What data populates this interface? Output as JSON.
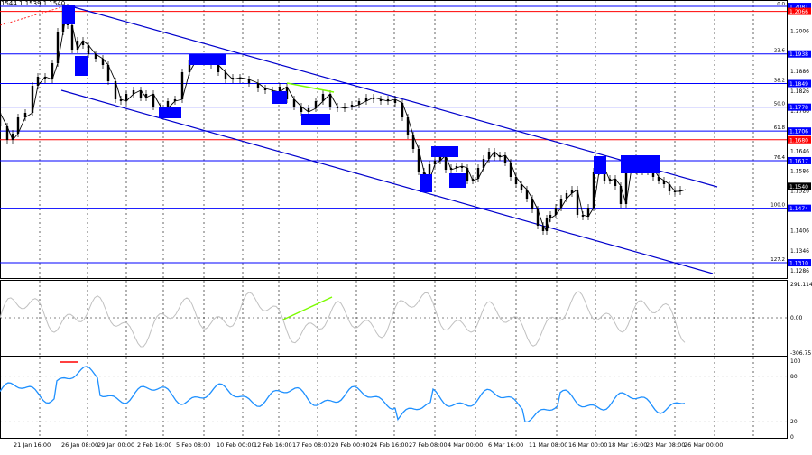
{
  "header": {
    "quote_line": "1544 1.1539 1.1540",
    "fib_pct_label": "0.0"
  },
  "price_axis": {
    "ticks": [
      "1.2006",
      "1.1886",
      "1.1826",
      "1.1766",
      "1.1646",
      "1.1586",
      "1.1526",
      "1.1406",
      "1.1346",
      "1.1286"
    ],
    "tick_values": [
      1.2006,
      1.1886,
      1.1826,
      1.1766,
      1.1646,
      1.1586,
      1.1526,
      1.1406,
      1.1346,
      1.1286
    ],
    "level_boxes": [
      {
        "value": 1.2081,
        "label": "1.2081",
        "color": "#0000ff"
      },
      {
        "value": 1.2066,
        "label": "1.2066",
        "color": "#ff0000"
      },
      {
        "value": 1.1938,
        "label": "1.1938",
        "color": "#0000ff"
      },
      {
        "value": 1.1849,
        "label": "1.1849",
        "color": "#0000ff"
      },
      {
        "value": 1.1778,
        "label": "1.1778",
        "color": "#0000ff"
      },
      {
        "value": 1.1706,
        "label": "1.1706",
        "color": "#0000ff"
      },
      {
        "value": 1.168,
        "label": "1.1680",
        "color": "#ff0000"
      },
      {
        "value": 1.1617,
        "label": "1.1617",
        "color": "#0000ff"
      },
      {
        "value": 1.154,
        "label": "1.1540",
        "color": "#000000"
      },
      {
        "value": 1.1474,
        "label": "1.1474",
        "color": "#0000ff"
      },
      {
        "value": 1.131,
        "label": "1.1310",
        "color": "#0000ff"
      }
    ]
  },
  "fib_levels": [
    {
      "pct": "23.6",
      "value": 1.1938
    },
    {
      "pct": "38.2",
      "value": 1.1849
    },
    {
      "pct": "50.0",
      "value": 1.1778
    },
    {
      "pct": "61.8",
      "value": 1.1706
    },
    {
      "pct": "76.4",
      "value": 1.1617
    },
    {
      "pct": "100.0",
      "value": 1.1474
    },
    {
      "pct": "127.2",
      "value": 1.131
    }
  ],
  "cci_panel": {
    "ticks": [
      "291.1149",
      "0.00",
      "-306.75"
    ],
    "tick_values": [
      291.1149,
      0,
      -306.75
    ]
  },
  "rsi_panel": {
    "ticks": [
      "100",
      "80",
      "20",
      "0"
    ],
    "tick_values": [
      100,
      80,
      20,
      0
    ]
  },
  "x_axis": {
    "labels": [
      "21 Jan 16:00",
      "26 Jan 08:00",
      "29 Jan 00:00",
      "2 Feb 16:00",
      "5 Feb 08:00",
      "10 Feb 00:00",
      "12 Feb 16:00",
      "17 Feb 08:00",
      "20 Feb 00:00",
      "24 Feb 16:00",
      "27 Feb 08:00",
      "4 Mar 00:00",
      "6 Mar 16:00",
      "11 Mar 08:00",
      "16 Mar 00:00",
      "18 Mar 16:00",
      "23 Mar 08:00",
      "26 Mar 00:00"
    ]
  },
  "colors": {
    "blue_level": "#0000ff",
    "red_level": "#ff0000",
    "candle": "#000000",
    "channel": "#0000cc",
    "cci_line": "#c0c0c0",
    "rsi_line": "#1e90ff",
    "divergence": "#7cfc00"
  },
  "chart_data": [
    {
      "type": "line",
      "subtype": "candlestick",
      "ylim": [
        1.1264,
        1.2092
      ],
      "x": [
        "21 Jan 16:00",
        "26 Jan 08:00",
        "29 Jan 00:00",
        "2 Feb 16:00",
        "5 Feb 08:00",
        "10 Feb 00:00",
        "12 Feb 16:00",
        "17 Feb 08:00",
        "20 Feb 00:00",
        "24 Feb 16:00",
        "27 Feb 08:00",
        "4 Mar 00:00",
        "6 Mar 16:00",
        "11 Mar 08:00",
        "16 Mar 00:00",
        "18 Mar 16:00",
        "23 Mar 08:00",
        "26 Mar 00:00"
      ],
      "series": [
        {
          "values": [
            1.1705,
            1.2081,
            1.187,
            1.18,
            1.176,
            1.192,
            1.188,
            1.183,
            1.179,
            1.182,
            1.18,
            1.157,
            1.167,
            1.154,
            1.141,
            1.15,
            1.158,
            1.154
          ]
        }
      ],
      "grid": true
    },
    {
      "type": "line",
      "ylim": [
        -306.75,
        291.1149
      ],
      "series": [
        {
          "values": [
            80,
            180,
            -60,
            20,
            -120,
            150,
            -40,
            -200,
            230,
            -30,
            60,
            -250,
            120,
            -80,
            -230,
            40,
            120,
            -10
          ]
        }
      ],
      "grid": true
    },
    {
      "type": "line",
      "ylim": [
        0,
        100
      ],
      "series": [
        {
          "values": [
            60,
            88,
            55,
            45,
            35,
            60,
            50,
            38,
            42,
            55,
            48,
            22,
            50,
            40,
            28,
            45,
            55,
            45
          ]
        }
      ],
      "grid": true
    }
  ]
}
